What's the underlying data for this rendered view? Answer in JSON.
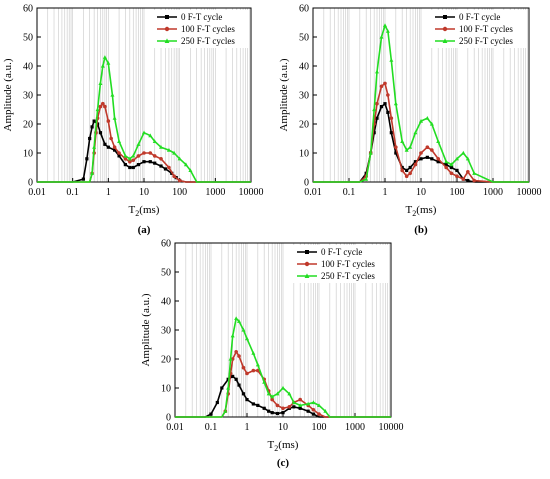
{
  "figure": {
    "series_colors": {
      "s0": "#000000",
      "s100": "#c0392b",
      "s250": "#22dd22"
    }
  },
  "chart_data": [
    {
      "type": "line",
      "panel_label": "(a)",
      "xlabel_main": "T",
      "xlabel_sub": "2",
      "xlabel_unit": "(ms)",
      "ylabel": "Amplitude (a.u.)",
      "xscale": "log",
      "xlim": [
        0.01,
        10000
      ],
      "ylim": [
        0,
        60
      ],
      "xticks": [
        "0.01",
        "0.1",
        "1",
        "10",
        "100",
        "1000",
        "10000"
      ],
      "yticks": [
        "0",
        "10",
        "20",
        "30",
        "40",
        "50",
        "60"
      ],
      "grid": "vertical log gridlines",
      "legend_position": "top-right",
      "series": [
        {
          "name": "0 F-T cycle",
          "color": "#000000",
          "marker": "square",
          "x": [
            0.01,
            0.1,
            0.2,
            0.25,
            0.3,
            0.35,
            0.4,
            0.5,
            0.6,
            0.8,
            1,
            1.5,
            2,
            3,
            4,
            5,
            7,
            10,
            15,
            20,
            30,
            40,
            60,
            80,
            100,
            150,
            200,
            1000,
            10000
          ],
          "y": [
            0,
            0,
            1,
            8,
            15,
            19,
            21,
            20,
            17,
            13,
            12,
            11,
            9,
            6,
            5,
            5,
            6,
            7,
            7,
            6.5,
            5.5,
            4.5,
            3,
            1.5,
            0.5,
            0,
            0,
            0,
            0
          ]
        },
        {
          "name": "100 F-T cycles",
          "color": "#c0392b",
          "marker": "circle",
          "x": [
            0.01,
            0.1,
            0.3,
            0.35,
            0.4,
            0.45,
            0.5,
            0.6,
            0.7,
            0.8,
            1,
            1.2,
            1.5,
            2,
            3,
            4,
            5,
            7,
            10,
            15,
            20,
            30,
            50,
            70,
            100,
            150,
            1000,
            10000
          ],
          "y": [
            0,
            0,
            0,
            3,
            10,
            17,
            22,
            26,
            27,
            26,
            21,
            15,
            12,
            10,
            8,
            7,
            7.5,
            9,
            10,
            10,
            9,
            8,
            5,
            2,
            0.5,
            0,
            0,
            0
          ]
        },
        {
          "name": "250 F-T cycles",
          "color": "#22dd22",
          "marker": "triangle",
          "x": [
            0.01,
            0.1,
            0.3,
            0.35,
            0.4,
            0.5,
            0.6,
            0.7,
            0.8,
            1,
            1.3,
            1.5,
            2,
            3,
            4,
            5,
            7,
            10,
            15,
            20,
            30,
            50,
            70,
            100,
            150,
            200,
            300,
            1000,
            10000
          ],
          "y": [
            0,
            0,
            0,
            3,
            12,
            25,
            34,
            40,
            43,
            41,
            30,
            22,
            14,
            9,
            8,
            9,
            13,
            17,
            16,
            14,
            12,
            11,
            10,
            8,
            6,
            4,
            0,
            0,
            0
          ]
        }
      ]
    },
    {
      "type": "line",
      "panel_label": "(b)",
      "xlabel_main": "T",
      "xlabel_sub": "2",
      "xlabel_unit": "(ms)",
      "ylabel": "Amplitude (a.u.)",
      "xscale": "log",
      "xlim": [
        0.01,
        10000
      ],
      "ylim": [
        0,
        60
      ],
      "xticks": [
        "0.01",
        "0.1",
        "1",
        "10",
        "100",
        "1000",
        "10000"
      ],
      "yticks": [
        "0",
        "10",
        "20",
        "30",
        "40",
        "50",
        "60"
      ],
      "grid": "vertical log gridlines",
      "legend_position": "top-right",
      "series": [
        {
          "name": "0 F-T cycle",
          "color": "#000000",
          "marker": "square",
          "x": [
            0.01,
            0.1,
            0.2,
            0.3,
            0.4,
            0.5,
            0.6,
            0.8,
            1,
            1.2,
            1.5,
            2,
            3,
            4,
            5,
            7,
            10,
            15,
            20,
            30,
            50,
            70,
            100,
            150,
            200,
            300,
            1000,
            10000
          ],
          "y": [
            0,
            0,
            0,
            3,
            10,
            17,
            22,
            26,
            27,
            24,
            17,
            10,
            5,
            4,
            5,
            7,
            8,
            8.5,
            8,
            7,
            6,
            5,
            4,
            1,
            0.5,
            0,
            0,
            0
          ]
        },
        {
          "name": "100 F-T cycles",
          "color": "#c0392b",
          "marker": "circle",
          "x": [
            0.01,
            0.1,
            0.2,
            0.3,
            0.4,
            0.5,
            0.6,
            0.8,
            1,
            1.2,
            1.5,
            2,
            3,
            4,
            5,
            7,
            10,
            15,
            20,
            30,
            50,
            70,
            100,
            150,
            200,
            300,
            1000,
            10000
          ],
          "y": [
            0,
            0,
            0,
            2,
            10,
            20,
            27,
            33,
            34,
            30,
            22,
            12,
            4,
            2,
            3,
            6,
            10,
            12,
            11,
            8,
            5,
            3,
            2,
            1,
            3.5,
            0.5,
            0,
            0
          ]
        },
        {
          "name": "250 F-T cycles",
          "color": "#22dd22",
          "marker": "triangle",
          "x": [
            0.01,
            0.1,
            0.2,
            0.3,
            0.4,
            0.5,
            0.6,
            0.8,
            1,
            1.2,
            1.5,
            2,
            3,
            4,
            5,
            7,
            10,
            15,
            20,
            30,
            50,
            70,
            100,
            150,
            200,
            300,
            1000,
            10000
          ],
          "y": [
            0,
            0,
            0,
            1,
            10,
            25,
            38,
            50,
            54,
            52,
            42,
            27,
            14,
            11,
            12,
            17,
            21,
            22,
            20,
            14,
            7,
            6,
            8,
            10,
            8,
            3,
            0,
            0
          ]
        }
      ]
    },
    {
      "type": "line",
      "panel_label": "(c)",
      "xlabel_main": "T",
      "xlabel_sub": "2",
      "xlabel_unit": "(ms)",
      "ylabel": "Amplitude (a.u.)",
      "xscale": "log",
      "xlim": [
        0.01,
        10000
      ],
      "ylim": [
        0,
        60
      ],
      "xticks": [
        "0.01",
        "0.1",
        "1",
        "10",
        "100",
        "1000",
        "10000"
      ],
      "yticks": [
        "0",
        "10",
        "20",
        "30",
        "40",
        "50",
        "60"
      ],
      "grid": "vertical log gridlines",
      "legend_position": "top-right",
      "series": [
        {
          "name": "0 F-T cycle",
          "color": "#000000",
          "marker": "square",
          "x": [
            0.01,
            0.07,
            0.1,
            0.15,
            0.2,
            0.3,
            0.4,
            0.5,
            0.6,
            0.8,
            1,
            1.5,
            2,
            3,
            4,
            5,
            7,
            10,
            15,
            20,
            30,
            50,
            70,
            100,
            1000,
            10000
          ],
          "y": [
            0,
            0,
            1,
            5,
            10,
            13,
            14,
            13,
            11,
            8,
            6,
            4.5,
            4,
            3,
            2,
            1.5,
            1.2,
            1.5,
            3,
            3.5,
            3,
            2,
            1,
            0,
            0,
            0
          ]
        },
        {
          "name": "100 F-T cycles",
          "color": "#c0392b",
          "marker": "circle",
          "x": [
            0.01,
            0.1,
            0.2,
            0.25,
            0.3,
            0.35,
            0.4,
            0.5,
            0.6,
            0.8,
            1,
            1.5,
            2,
            3,
            4,
            5,
            7,
            10,
            15,
            20,
            30,
            50,
            70,
            100,
            150,
            1000,
            10000
          ],
          "y": [
            0,
            0,
            0,
            2,
            8,
            15,
            20,
            22.5,
            21,
            17,
            15,
            16,
            16,
            13,
            9,
            6,
            4,
            3,
            3.5,
            5,
            6,
            4,
            2.5,
            1,
            0,
            0,
            0
          ]
        },
        {
          "name": "250 F-T cycles",
          "color": "#22dd22",
          "marker": "triangle",
          "x": [
            0.01,
            0.1,
            0.2,
            0.25,
            0.3,
            0.35,
            0.4,
            0.5,
            0.6,
            0.8,
            1,
            1.5,
            2,
            3,
            4,
            5,
            7,
            10,
            15,
            20,
            30,
            50,
            70,
            100,
            150,
            200,
            1000,
            10000
          ],
          "y": [
            0,
            0,
            0,
            2,
            10,
            20,
            28,
            34,
            33,
            30,
            27,
            22,
            18,
            12,
            8,
            7,
            8,
            10,
            8,
            5,
            4,
            4.5,
            5,
            4,
            2,
            0,
            0,
            0
          ]
        }
      ]
    }
  ]
}
